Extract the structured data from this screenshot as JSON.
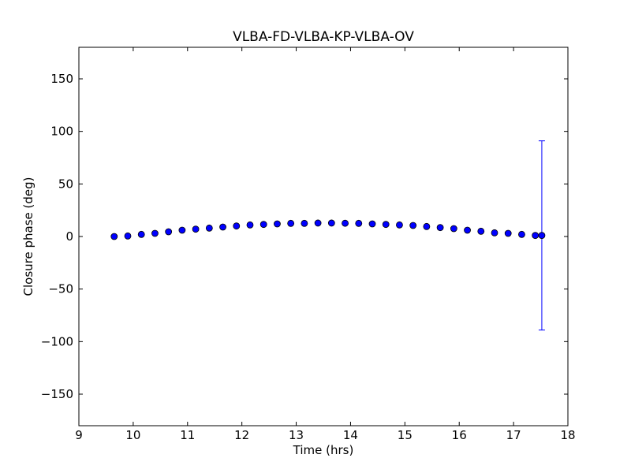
{
  "chart_data": {
    "type": "scatter",
    "title": "VLBA-FD-VLBA-KP-VLBA-OV",
    "xlabel": "Time (hrs)",
    "ylabel": "Closure phase (deg)",
    "xlim": [
      9,
      18
    ],
    "ylim": [
      -180,
      180
    ],
    "xticks": [
      9,
      10,
      11,
      12,
      13,
      14,
      15,
      16,
      17,
      18
    ],
    "yticks": [
      -150,
      -100,
      -50,
      0,
      50,
      100,
      150
    ],
    "ytick_labels": [
      "−150",
      "−100",
      "−50",
      "0",
      "50",
      "100",
      "150"
    ],
    "grid": false,
    "marker_color": "#0000ff",
    "marker_edge_color": "#000000",
    "points": [
      {
        "x": 9.65,
        "y": 0.0
      },
      {
        "x": 9.9,
        "y": 0.5
      },
      {
        "x": 10.15,
        "y": 2.0
      },
      {
        "x": 10.4,
        "y": 3.0
      },
      {
        "x": 10.65,
        "y": 4.5
      },
      {
        "x": 10.9,
        "y": 6.0
      },
      {
        "x": 11.15,
        "y": 7.0
      },
      {
        "x": 11.4,
        "y": 8.0
      },
      {
        "x": 11.65,
        "y": 9.0
      },
      {
        "x": 11.9,
        "y": 10.0
      },
      {
        "x": 12.15,
        "y": 11.0
      },
      {
        "x": 12.4,
        "y": 11.5
      },
      {
        "x": 12.65,
        "y": 12.0
      },
      {
        "x": 12.9,
        "y": 12.5
      },
      {
        "x": 13.15,
        "y": 12.5
      },
      {
        "x": 13.4,
        "y": 12.8
      },
      {
        "x": 13.65,
        "y": 12.8
      },
      {
        "x": 13.9,
        "y": 12.6
      },
      {
        "x": 14.15,
        "y": 12.5
      },
      {
        "x": 14.4,
        "y": 12.0
      },
      {
        "x": 14.65,
        "y": 11.5
      },
      {
        "x": 14.9,
        "y": 11.0
      },
      {
        "x": 15.15,
        "y": 10.5
      },
      {
        "x": 15.4,
        "y": 9.5
      },
      {
        "x": 15.65,
        "y": 8.5
      },
      {
        "x": 15.9,
        "y": 7.5
      },
      {
        "x": 16.15,
        "y": 6.0
      },
      {
        "x": 16.4,
        "y": 5.0
      },
      {
        "x": 16.65,
        "y": 3.5
      },
      {
        "x": 16.9,
        "y": 3.0
      },
      {
        "x": 17.15,
        "y": 2.0
      },
      {
        "x": 17.4,
        "y": 1.0
      },
      {
        "x": 17.52,
        "y": 1.0,
        "yerr": 90
      }
    ]
  }
}
